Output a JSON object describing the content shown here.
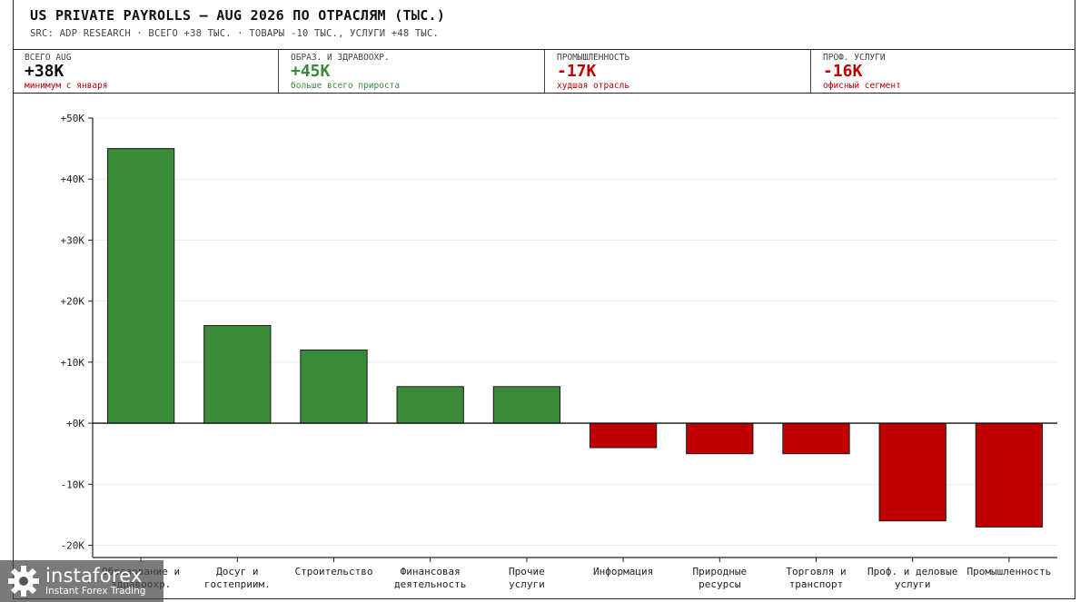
{
  "header": {
    "title": "US PRIVATE PAYROLLS — AUG 2026 ПО ОТРАСЛЯМ (ТЫС.)",
    "subtitle": "SRC: ADP RESEARCH · ВСЕГО +38 ТЫС. · ТОВАРЫ -10 ТЫС., УСЛУГИ +48 ТЫС."
  },
  "stats": [
    {
      "label": "ВСЕГО AUG",
      "value": "+38K",
      "note": "минимум с января",
      "value_color": "#111111",
      "note_color": "#b00000"
    },
    {
      "label": "ОБРАЗ. И ЗДРАВООХР.",
      "value": "+45K",
      "note": "больше всего прироста",
      "value_color": "#3a8a3a",
      "note_color": "#3a8a3a"
    },
    {
      "label": "ПРОМЫШЛЕННОСТЬ",
      "value": "-17K",
      "note": "худшая отрасль",
      "value_color": "#c00000",
      "note_color": "#b00000"
    },
    {
      "label": "ПРОФ. УСЛУГИ",
      "value": "-16K",
      "note": "офисный сегмент",
      "value_color": "#c00000",
      "note_color": "#b00000"
    }
  ],
  "chart_data": {
    "type": "bar",
    "categories": [
      [
        "Образование и",
        "здравоохр."
      ],
      [
        "Досуг и",
        "гостеприим."
      ],
      [
        "Строительство"
      ],
      [
        "Финансовая",
        "деятельность"
      ],
      [
        "Прочие",
        "услуги"
      ],
      [
        "Информация"
      ],
      [
        "Природные",
        "ресурсы"
      ],
      [
        "Торговля и",
        "транспорт"
      ],
      [
        "Проф. и деловые",
        "услуги"
      ],
      [
        "Промышленность"
      ]
    ],
    "values": [
      45,
      16,
      12,
      6,
      6,
      -4,
      -5,
      -5,
      -16,
      -17
    ],
    "ylim": [
      -22,
      50
    ],
    "yticks": [
      50,
      40,
      30,
      20,
      10,
      0,
      -10,
      -20
    ],
    "ytick_labels": [
      "+50K",
      "+40K",
      "+30K",
      "+20K",
      "+10K",
      "+0K",
      "-10K",
      "-20K"
    ],
    "positive_color": "#3a8a3a",
    "negative_color": "#c00000",
    "grid": true
  },
  "watermark": {
    "brand": "instaforex",
    "tagline": "Instant Forex Trading",
    "icon": "gear-icon"
  }
}
